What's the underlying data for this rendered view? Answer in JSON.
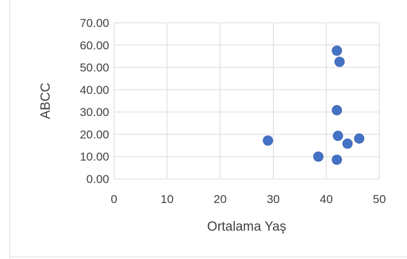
{
  "chart_data": {
    "type": "scatter",
    "title": "",
    "xlabel": "Ortalama Yaş",
    "ylabel": "ABCC",
    "xlim": [
      0,
      50
    ],
    "ylim": [
      0,
      70
    ],
    "x_ticks": [
      "0",
      "10",
      "20",
      "30",
      "40",
      "50"
    ],
    "y_ticks": [
      "0.00",
      "10.00",
      "20.00",
      "30.00",
      "40.00",
      "50.00",
      "60.00",
      "70.00"
    ],
    "grid": true,
    "legend": "none",
    "marker_color": "#4472c4",
    "points": [
      {
        "x": 29.0,
        "y": 17.2
      },
      {
        "x": 38.5,
        "y": 10.0
      },
      {
        "x": 42.0,
        "y": 57.5
      },
      {
        "x": 42.5,
        "y": 52.5
      },
      {
        "x": 42.0,
        "y": 30.8
      },
      {
        "x": 42.2,
        "y": 19.3
      },
      {
        "x": 44.0,
        "y": 15.8
      },
      {
        "x": 46.2,
        "y": 18.1
      },
      {
        "x": 42.0,
        "y": 8.6
      }
    ]
  }
}
